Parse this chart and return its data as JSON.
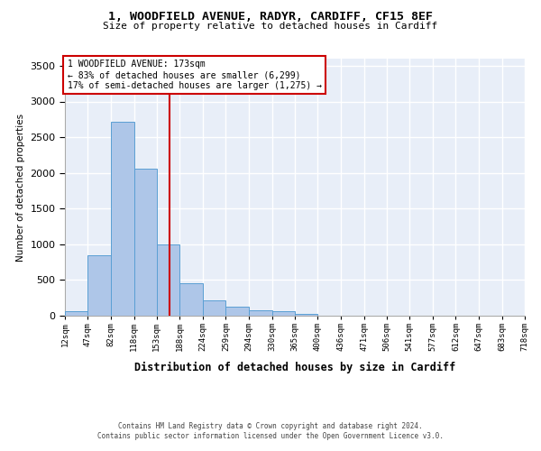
{
  "title_line1": "1, WOODFIELD AVENUE, RADYR, CARDIFF, CF15 8EF",
  "title_line2": "Size of property relative to detached houses in Cardiff",
  "xlabel": "Distribution of detached houses by size in Cardiff",
  "ylabel": "Number of detached properties",
  "footer_line1": "Contains HM Land Registry data © Crown copyright and database right 2024.",
  "footer_line2": "Contains public sector information licensed under the Open Government Licence v3.0.",
  "bar_edges": [
    12,
    47,
    82,
    118,
    153,
    188,
    224,
    259,
    294,
    330,
    365,
    400,
    436,
    471,
    506,
    541,
    577,
    612,
    647,
    683,
    718
  ],
  "bar_heights": [
    60,
    850,
    2720,
    2060,
    1000,
    450,
    210,
    130,
    70,
    60,
    30,
    0,
    0,
    0,
    0,
    0,
    0,
    0,
    0,
    0
  ],
  "bar_color": "#aec6e8",
  "bar_edgecolor": "#5a9fd4",
  "tick_labels": [
    "12sqm",
    "47sqm",
    "82sqm",
    "118sqm",
    "153sqm",
    "188sqm",
    "224sqm",
    "259sqm",
    "294sqm",
    "330sqm",
    "365sqm",
    "400sqm",
    "436sqm",
    "471sqm",
    "506sqm",
    "541sqm",
    "577sqm",
    "612sqm",
    "647sqm",
    "683sqm",
    "718sqm"
  ],
  "vline_x": 173,
  "vline_color": "#cc0000",
  "annotation_box_text": "1 WOODFIELD AVENUE: 173sqm\n← 83% of detached houses are smaller (6,299)\n17% of semi-detached houses are larger (1,275) →",
  "ylim": [
    0,
    3600
  ],
  "yticks": [
    0,
    500,
    1000,
    1500,
    2000,
    2500,
    3000,
    3500
  ],
  "background_color": "#e8eef8",
  "grid_color": "#ffffff",
  "fig_background": "#ffffff"
}
